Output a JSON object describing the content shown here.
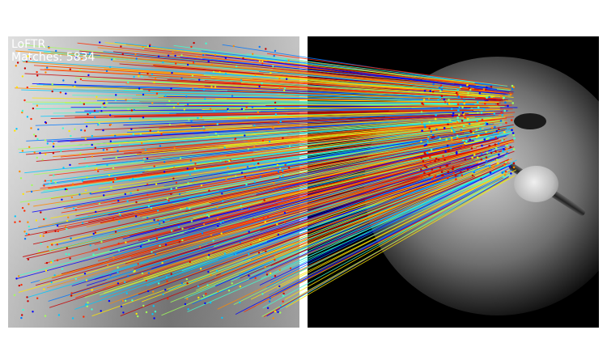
{
  "overlay": {
    "method_label": "LoFTR",
    "matches_label": "Matches: 5834"
  },
  "images": {
    "left": "grayscale-photo",
    "right": "grayscale-photo-dark-background"
  },
  "colormap": "jet",
  "colors": {
    "background": "#ffffff",
    "text": "#ffffff",
    "palette": [
      "#0000ff",
      "#0077ff",
      "#00c8ff",
      "#3dffd0",
      "#a0ff5a",
      "#ffe600",
      "#ff8a00",
      "#ff2a00",
      "#c80000"
    ]
  }
}
